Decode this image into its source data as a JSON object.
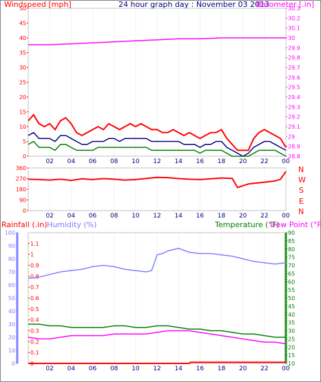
{
  "header": {
    "windspeed_label": "Windspeed [mph]",
    "date_label": "24 hour graph day : November 03 2013",
    "barometer_label": "Barometer [.in]"
  },
  "lower_header": {
    "rainfall_label": "Rainfall (.in)",
    "humidity_label": "Humidity (%)",
    "temperature_label": "Temperature (°F)",
    "dewpoint_label": "Dew Point (°F)"
  },
  "compass": [
    "N",
    "W",
    "S",
    "E",
    "N"
  ],
  "colors": {
    "wind_gust": "#ff0000",
    "wind_avg": "#000080",
    "wind_low": "#008000",
    "barometer": "#ff00ff",
    "direction": "#ff0000",
    "humidity": "#8080ff",
    "temperature": "#008000",
    "dewpoint": "#ff00ff",
    "rainfall": "#ff0000"
  },
  "chart_data": [
    {
      "type": "line",
      "panel": "wind",
      "title": "24 hour graph day : November 03 2013",
      "x_ticks": [
        "02",
        "04",
        "06",
        "08",
        "10",
        "12",
        "14",
        "16",
        "18",
        "20",
        "22",
        "00"
      ],
      "xlim_hours": [
        0,
        24
      ],
      "ylabel": "Windspeed [mph]",
      "ylim": [
        0,
        50
      ],
      "y_ticks": [
        "0",
        "5",
        "10",
        "15",
        "20",
        "25",
        "30",
        "35",
        "40",
        "45",
        "50"
      ],
      "y2label": "Barometer [.in]",
      "y2lim": [
        28.8,
        30.3
      ],
      "y2_ticks": [
        "28.8",
        "28.9",
        "29",
        "29.1",
        "29.2",
        "29.3",
        "29.4",
        "29.5",
        "29.6",
        "29.7",
        "29.8",
        "29.9",
        "30",
        "30.1",
        "30.2",
        "30.3"
      ],
      "series": [
        {
          "name": "gust",
          "x": [
            0,
            0.5,
            1,
            1.5,
            2,
            2.5,
            3,
            3.5,
            4,
            4.5,
            5,
            5.5,
            6,
            6.5,
            7,
            7.5,
            8,
            8.5,
            9,
            9.5,
            10,
            10.5,
            11,
            11.5,
            12,
            12.5,
            13,
            13.5,
            14,
            14.5,
            15,
            15.5,
            16,
            16.5,
            17,
            17.5,
            18,
            18.5,
            19,
            19.5,
            20,
            20.5,
            21,
            21.5,
            22,
            22.5,
            23,
            23.5,
            24
          ],
          "values": [
            12,
            14,
            11,
            10,
            11,
            9,
            12,
            13,
            11,
            8,
            7,
            8,
            9,
            10,
            9,
            11,
            10,
            9,
            10,
            11,
            10,
            11,
            10,
            9,
            9,
            8,
            8,
            9,
            8,
            7,
            8,
            7,
            6,
            7,
            8,
            8,
            9,
            6,
            4,
            2,
            2,
            2,
            6,
            8,
            9,
            8,
            7,
            6,
            3
          ]
        },
        {
          "name": "average",
          "x": [
            0,
            0.5,
            1,
            1.5,
            2,
            2.5,
            3,
            3.5,
            4,
            4.5,
            5,
            5.5,
            6,
            6.5,
            7,
            7.5,
            8,
            8.5,
            9,
            9.5,
            10,
            10.5,
            11,
            11.5,
            12,
            12.5,
            13,
            13.5,
            14,
            14.5,
            15,
            15.5,
            16,
            16.5,
            17,
            17.5,
            18,
            18.5,
            19,
            19.5,
            20,
            20.5,
            21,
            21.5,
            22,
            22.5,
            23,
            23.5,
            24
          ],
          "values": [
            7,
            8,
            6,
            6,
            6,
            5,
            7,
            7,
            6,
            5,
            4,
            4,
            5,
            5,
            5,
            6,
            6,
            5,
            6,
            6,
            6,
            6,
            6,
            5,
            5,
            5,
            5,
            5,
            5,
            4,
            4,
            4,
            3,
            4,
            4,
            5,
            5,
            3,
            2,
            1,
            0,
            1,
            3,
            4,
            5,
            5,
            4,
            3,
            2
          ]
        },
        {
          "name": "low",
          "x": [
            0,
            0.5,
            1,
            1.5,
            2,
            2.5,
            3,
            3.5,
            4,
            4.5,
            5,
            5.5,
            6,
            6.5,
            7,
            7.5,
            8,
            8.5,
            9,
            9.5,
            10,
            10.5,
            11,
            11.5,
            12,
            12.5,
            13,
            13.5,
            14,
            14.5,
            15,
            15.5,
            16,
            16.5,
            17,
            17.5,
            18,
            18.5,
            19,
            19.5,
            20,
            20.5,
            21,
            21.5,
            22,
            22.5,
            23,
            23.5,
            24
          ],
          "values": [
            4,
            5,
            3,
            3,
            3,
            2,
            4,
            4,
            3,
            2,
            2,
            2,
            2,
            3,
            3,
            3,
            3,
            3,
            3,
            3,
            3,
            3,
            3,
            2,
            2,
            2,
            2,
            2,
            2,
            2,
            2,
            2,
            1,
            2,
            2,
            2,
            2,
            1,
            0,
            0,
            0,
            0,
            1,
            2,
            2,
            2,
            2,
            1,
            0
          ]
        },
        {
          "name": "barometer",
          "axis": "y2",
          "x": [
            0,
            2,
            4,
            6,
            8,
            10,
            12,
            14,
            16,
            18,
            20,
            22,
            24
          ],
          "values": [
            29.93,
            29.93,
            29.94,
            29.95,
            29.96,
            29.97,
            29.98,
            29.99,
            29.99,
            30.0,
            30.0,
            30.0,
            30.0
          ]
        }
      ]
    },
    {
      "type": "line",
      "panel": "direction",
      "x_ticks": [
        "02",
        "04",
        "06",
        "08",
        "10",
        "12",
        "14",
        "16",
        "18",
        "20",
        "22",
        "00"
      ],
      "ylim": [
        0,
        360
      ],
      "y_ticks": [
        "0",
        "90",
        "180",
        "270",
        "360"
      ],
      "series": [
        {
          "name": "wind direction",
          "x": [
            0,
            1,
            2,
            3,
            4,
            5,
            6,
            7,
            8,
            9,
            10,
            11,
            12,
            13,
            14,
            15,
            16,
            17,
            18,
            19,
            19.5,
            20,
            20.5,
            21,
            22,
            23,
            23.5,
            24
          ],
          "values": [
            265,
            262,
            258,
            265,
            255,
            268,
            262,
            270,
            265,
            258,
            262,
            272,
            280,
            278,
            270,
            265,
            262,
            268,
            275,
            272,
            195,
            210,
            225,
            230,
            240,
            250,
            265,
            330
          ]
        }
      ]
    },
    {
      "type": "line",
      "panel": "climate",
      "x_ticks": [
        "02",
        "04",
        "06",
        "08",
        "10",
        "12",
        "14",
        "16",
        "18",
        "20",
        "22",
        "00"
      ],
      "ylabel": "Rainfall (.in)",
      "ylim": [
        0,
        1.2
      ],
      "y_ticks": [
        "0",
        "0.1",
        "0.2",
        "0.3",
        "0.4",
        "0.5",
        "0.6",
        "0.7",
        "0.8",
        "0.9",
        "1",
        "1.1"
      ],
      "humidity_ylim": [
        0,
        100
      ],
      "humidity_ticks": [
        "0",
        "10",
        "20",
        "30",
        "40",
        "50",
        "60",
        "70",
        "80",
        "90",
        "100"
      ],
      "y2label": "Temperature (°F)",
      "y2lim": [
        10,
        90
      ],
      "y2_ticks": [
        "10",
        "15",
        "20",
        "25",
        "30",
        "35",
        "40",
        "45",
        "50",
        "55",
        "60",
        "65",
        "70",
        "75",
        "80",
        "85",
        "90"
      ],
      "series": [
        {
          "name": "Humidity (%)",
          "axis": "humidity",
          "x": [
            0,
            1,
            2,
            3,
            4,
            5,
            6,
            7,
            8,
            9,
            10,
            11,
            11.5,
            12,
            12.5,
            13,
            14,
            15,
            16,
            17,
            18,
            19,
            20,
            21,
            22,
            23,
            24
          ],
          "values": [
            65,
            66,
            68,
            70,
            71,
            72,
            74,
            75,
            74,
            72,
            71,
            70,
            71,
            83,
            84,
            86,
            88,
            85,
            84,
            84,
            83,
            82,
            80,
            78,
            77,
            76,
            77
          ]
        },
        {
          "name": "Temperature (°F)",
          "axis": "y2",
          "x": [
            0,
            1,
            2,
            3,
            4,
            5,
            6,
            7,
            8,
            9,
            10,
            11,
            12,
            13,
            14,
            15,
            16,
            17,
            18,
            19,
            20,
            21,
            22,
            23,
            24
          ],
          "values": [
            34,
            34,
            33,
            33,
            32,
            32,
            32,
            32,
            33,
            33,
            32,
            32,
            33,
            33,
            32,
            31,
            31,
            30,
            30,
            29,
            28,
            28,
            27,
            26,
            26
          ]
        },
        {
          "name": "Dew Point (°F)",
          "axis": "y2",
          "x": [
            0,
            1,
            2,
            3,
            4,
            5,
            6,
            7,
            8,
            9,
            10,
            11,
            12,
            13,
            14,
            15,
            16,
            17,
            18,
            19,
            20,
            21,
            22,
            23,
            24
          ],
          "values": [
            26,
            25,
            25,
            26,
            27,
            27,
            27,
            27,
            28,
            28,
            28,
            28,
            29,
            30,
            30,
            30,
            29,
            28,
            27,
            26,
            25,
            24,
            23,
            23,
            22
          ]
        },
        {
          "name": "Rainfall (.in)",
          "axis": "y",
          "x": [
            0,
            15,
            15.1,
            24
          ],
          "values": [
            0.0,
            0.0,
            0.01,
            0.01
          ]
        }
      ]
    }
  ]
}
